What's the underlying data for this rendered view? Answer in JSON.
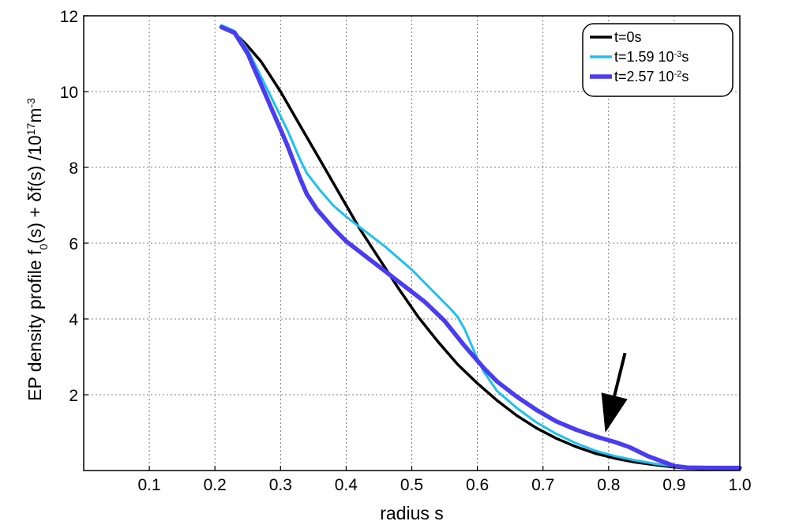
{
  "chart_data": {
    "type": "line",
    "xlabel": "radius s",
    "ylabel": {
      "parts": [
        {
          "t": "EP density profile f",
          "s": "n"
        },
        {
          "t": "0",
          "s": "sub"
        },
        {
          "t": "(s) + δf(s) /10",
          "s": "n"
        },
        {
          "t": "17",
          "s": "sup"
        },
        {
          "t": "m",
          "s": "n"
        },
        {
          "t": "-3",
          "s": "sup"
        }
      ]
    },
    "xlim": [
      0,
      1.0
    ],
    "ylim": [
      0,
      12
    ],
    "xticks": [
      0.1,
      0.2,
      0.3,
      0.4,
      0.5,
      0.6,
      0.7,
      0.8,
      0.9,
      1.0
    ],
    "xtick_labels": [
      "0.1",
      "0.2",
      "0.3",
      "0.4",
      "0.5",
      "0.6",
      "0.7",
      "0.8",
      "0.9",
      "1.0"
    ],
    "yticks": [
      2,
      4,
      6,
      8,
      10,
      12
    ],
    "ytick_labels": [
      "2",
      "4",
      "6",
      "8",
      "10",
      "12"
    ],
    "grid": true,
    "legend_position": "top-right",
    "series": [
      {
        "name": "t=0s",
        "legend_parts": [
          {
            "t": "t=0s",
            "s": "n"
          }
        ],
        "color": "#000000",
        "width": 3.5,
        "x": [
          0.21,
          0.23,
          0.25,
          0.27,
          0.3,
          0.33,
          0.36,
          0.39,
          0.42,
          0.45,
          0.48,
          0.51,
          0.54,
          0.57,
          0.6,
          0.63,
          0.66,
          0.69,
          0.72,
          0.75,
          0.78,
          0.81,
          0.84,
          0.87,
          0.9,
          0.92,
          0.95,
          1.0
        ],
        "y": [
          11.7,
          11.55,
          11.2,
          10.8,
          10.0,
          9.1,
          8.2,
          7.3,
          6.4,
          5.6,
          4.8,
          4.05,
          3.4,
          2.8,
          2.3,
          1.85,
          1.45,
          1.12,
          0.85,
          0.63,
          0.45,
          0.32,
          0.22,
          0.15,
          0.09,
          0.06,
          0.04,
          0.04
        ]
      },
      {
        "name": "t=1.59 10⁻³s",
        "legend_parts": [
          {
            "t": "t=1.59 10",
            "s": "n"
          },
          {
            "t": "-3",
            "s": "sup"
          },
          {
            "t": "s",
            "s": "n"
          }
        ],
        "color": "#1ec0f0",
        "width": 3,
        "x": [
          0.21,
          0.23,
          0.25,
          0.27,
          0.29,
          0.31,
          0.33,
          0.34,
          0.36,
          0.38,
          0.4,
          0.43,
          0.46,
          0.48,
          0.5,
          0.52,
          0.54,
          0.56,
          0.57,
          0.58,
          0.59,
          0.6,
          0.61,
          0.63,
          0.66,
          0.69,
          0.72,
          0.75,
          0.78,
          0.81,
          0.84,
          0.87,
          0.9,
          0.92,
          0.95,
          1.0
        ],
        "y": [
          11.75,
          11.6,
          11.1,
          10.4,
          9.7,
          9.0,
          8.2,
          7.85,
          7.4,
          7.0,
          6.7,
          6.3,
          5.9,
          5.6,
          5.3,
          4.95,
          4.6,
          4.25,
          4.05,
          3.75,
          3.35,
          2.95,
          2.6,
          2.1,
          1.65,
          1.27,
          0.97,
          0.72,
          0.52,
          0.38,
          0.27,
          0.18,
          0.11,
          0.07,
          0.05,
          0.05
        ]
      },
      {
        "name": "t=2.57 10⁻²s",
        "legend_parts": [
          {
            "t": "t=2.57 10",
            "s": "n"
          },
          {
            "t": "-2",
            "s": "sup"
          },
          {
            "t": "s",
            "s": "n"
          }
        ],
        "color": "#4a3cf0",
        "width": 5.5,
        "x": [
          0.21,
          0.23,
          0.25,
          0.27,
          0.29,
          0.31,
          0.33,
          0.34,
          0.355,
          0.37,
          0.38,
          0.4,
          0.43,
          0.46,
          0.49,
          0.52,
          0.55,
          0.58,
          0.61,
          0.63,
          0.66,
          0.69,
          0.72,
          0.75,
          0.78,
          0.81,
          0.83,
          0.84,
          0.86,
          0.88,
          0.9,
          0.92,
          0.95,
          1.0
        ],
        "y": [
          11.7,
          11.55,
          11.0,
          10.2,
          9.4,
          8.6,
          7.7,
          7.3,
          6.9,
          6.6,
          6.4,
          6.05,
          5.65,
          5.25,
          4.85,
          4.45,
          3.95,
          3.3,
          2.7,
          2.35,
          1.95,
          1.6,
          1.3,
          1.08,
          0.9,
          0.75,
          0.63,
          0.55,
          0.38,
          0.25,
          0.12,
          0.08,
          0.07,
          0.07
        ]
      }
    ],
    "annotation": {
      "type": "arrow",
      "from": [
        0.825,
        3.1
      ],
      "to": [
        0.795,
        1.0
      ]
    }
  }
}
